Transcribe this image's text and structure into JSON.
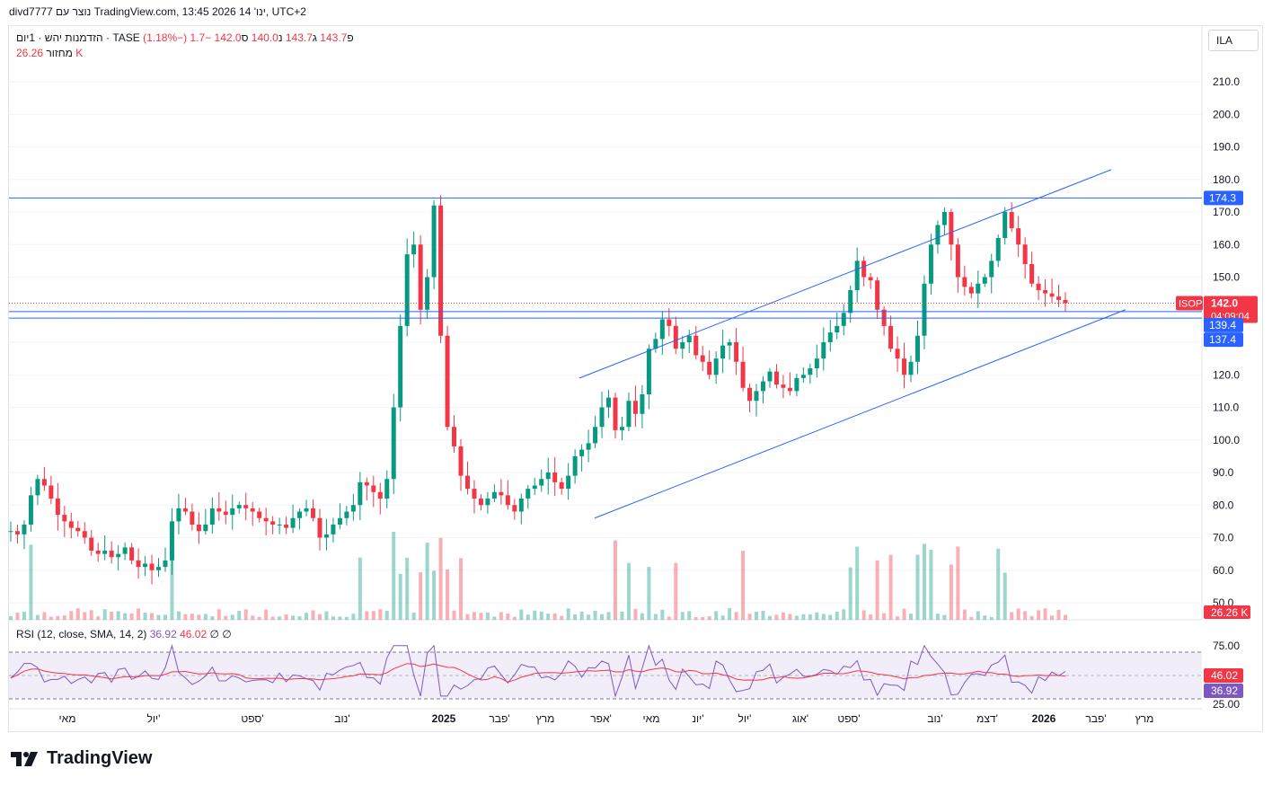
{
  "header": {
    "created_by": "divd7777 נוצר עם TradingView.com, 13:45 2026 ינו' 14, UTC+2"
  },
  "legend": {
    "symbol": "הזדמנות יהש · 1יום · TASE",
    "open_label": "פ",
    "open": "143.7",
    "high_label": "ג",
    "high": "143.7",
    "low_label": "נ",
    "low": "140.0",
    "close_label": "ס",
    "close": "142.0",
    "change": "−1.7 (−1.18%)",
    "volume_label": "מחזור",
    "volume": "26.26 K"
  },
  "currency": "ILA",
  "rsi_legend": {
    "name": "RSI (12, close, SMA, 14, 2)",
    "rsi": "36.92",
    "sma": "46.02",
    "extra": "∅ ∅"
  },
  "price_labels": {
    "ticker": "ISOP",
    "last": "142.0",
    "countdown": "04:09:04",
    "line1": "174.3",
    "line2": "139.4",
    "line3": "137.4",
    "volume": "26.26 K",
    "rsi_sma": "46.02",
    "rsi": "36.92"
  },
  "brand": "TradingView",
  "colors": {
    "up": "#089981",
    "down": "#f23645",
    "line": "#2962ff",
    "rsi": "#7e57c2",
    "rsi_sma": "#f23645",
    "rsi_band": "#7e57c21a"
  },
  "chart_data": {
    "type": "candlestick",
    "y_axis_ticks": [
      210,
      200,
      190,
      180,
      170,
      160,
      150,
      140,
      130,
      120,
      110,
      100,
      90,
      80,
      70,
      60,
      50
    ],
    "y_axis_tick_labels": [
      "210.0",
      "200.0",
      "190.0",
      "180.0",
      "170.0",
      "160.0",
      "150.0",
      "",
      "",
      "120.0",
      "110.0",
      "100.0",
      "90.0",
      "80.0",
      "70.0",
      "60.0",
      "50.0"
    ],
    "x_axis_labels": [
      "מאי",
      "יול'",
      "ספט'",
      "נוב'",
      "2025",
      "פבר'",
      "מרץ",
      "אפר'",
      "מאי",
      "יונ'",
      "יול'",
      "אוג'",
      "ספט'",
      "נוב'",
      "דצמ'",
      "2026",
      "פבר'",
      "מרץ"
    ],
    "x_axis_bold": [
      "2025",
      "2026"
    ],
    "horizontal_lines": [
      174.3,
      139.4,
      137.4
    ],
    "channel_upper": [
      {
        "x": "2025-04",
        "y": 119
      },
      {
        "x": "2026-01",
        "y": 183
      }
    ],
    "channel_lower": [
      {
        "x": "2025-04",
        "y": 76
      },
      {
        "x": "2026-02",
        "y": 140
      }
    ],
    "price_path": [
      72,
      71,
      74,
      83,
      88,
      86,
      82,
      77,
      75,
      73,
      72,
      70,
      66,
      65,
      66,
      64,
      65,
      67,
      63,
      61,
      62,
      60,
      61,
      63,
      75,
      79,
      78,
      74,
      72,
      74,
      79,
      78,
      77,
      79,
      80,
      79,
      78,
      76,
      75,
      74,
      74,
      73,
      76,
      78,
      79,
      76,
      70,
      71,
      74,
      76,
      78,
      80,
      87,
      86,
      84,
      82,
      88,
      110,
      135,
      157,
      160,
      140,
      150,
      172,
      132,
      104,
      98,
      89,
      85,
      82,
      80,
      82,
      84,
      83,
      80,
      78,
      82,
      85,
      86,
      88,
      90,
      87,
      85,
      89,
      95,
      97,
      99,
      104,
      110,
      113,
      103,
      104,
      112,
      108,
      114,
      128,
      131,
      137,
      135,
      128,
      130,
      132,
      126,
      124,
      120,
      125,
      129,
      130,
      124,
      116,
      112,
      115,
      118,
      121,
      117,
      116,
      115,
      119,
      120,
      122,
      125,
      130,
      133,
      135,
      139,
      146,
      155,
      150,
      149,
      140,
      135,
      128,
      125,
      120,
      124,
      132,
      148,
      160,
      166,
      170,
      160,
      150,
      147,
      145,
      148,
      150,
      155,
      162,
      170,
      165,
      160,
      154,
      148,
      146,
      145,
      144,
      143,
      142
    ],
    "last": 142.0,
    "volume_last": 26.26,
    "rsi": {
      "period": 12,
      "sma_period": 14,
      "levels": [
        75.0,
        25.0
      ],
      "mid": 50,
      "last": 36.92,
      "sma_last": 46.02,
      "tick_labels": [
        "75.00",
        "25.00"
      ]
    }
  }
}
